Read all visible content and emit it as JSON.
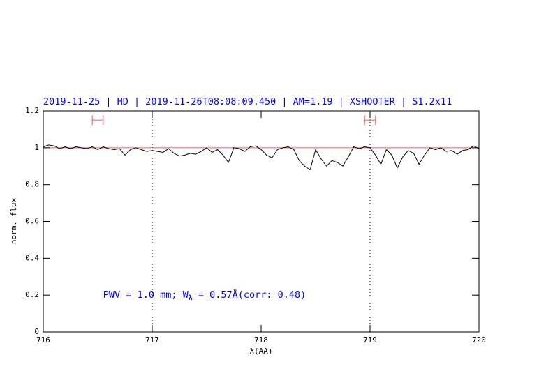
{
  "chart_data": {
    "type": "line",
    "title": "2019-11-25 | HD | 2019-11-26T08:08:09.450 | AM=1.19 | XSHOOTER | S1.2x11",
    "xlabel": "λ(AA)",
    "ylabel": "norm. flux",
    "annotation": {
      "parts": [
        "PWV = 1.0 mm; W",
        "λ",
        " = 0.57Å(corr: 0.48)"
      ],
      "color": "#0000ff"
    },
    "xlim": [
      716,
      720
    ],
    "ylim": [
      0,
      1.2
    ],
    "xticks": [
      716,
      717,
      718,
      719,
      720
    ],
    "yticks": [
      0,
      0.2,
      0.4,
      0.6,
      0.8,
      1,
      1.2
    ],
    "hline": {
      "y": 1,
      "color": "#ff5555"
    },
    "vlines": [
      717,
      719
    ],
    "markers": [
      {
        "x": 716.5,
        "y": 1.15,
        "xerr": 0.05,
        "color": "#ff5555"
      },
      {
        "x": 719,
        "y": 1.15,
        "xerr": 0.05,
        "color": "#ff5555"
      }
    ],
    "color": "#000000",
    "x": [
      716.0,
      716.05,
      716.1,
      716.15,
      716.2,
      716.25,
      716.3,
      716.35,
      716.4,
      716.45,
      716.5,
      716.55,
      716.6,
      716.65,
      716.7,
      716.75,
      716.8,
      716.85,
      716.9,
      716.95,
      717.0,
      717.05,
      717.1,
      717.15,
      717.2,
      717.25,
      717.3,
      717.35,
      717.4,
      717.45,
      717.5,
      717.55,
      717.6,
      717.65,
      717.7,
      717.75,
      717.8,
      717.85,
      717.9,
      717.95,
      718.0,
      718.05,
      718.1,
      718.15,
      718.2,
      718.25,
      718.3,
      718.35,
      718.4,
      718.45,
      718.5,
      718.55,
      718.6,
      718.65,
      718.7,
      718.75,
      718.8,
      718.85,
      718.9,
      718.95,
      719.0,
      719.05,
      719.1,
      719.15,
      719.2,
      719.25,
      719.3,
      719.35,
      719.4,
      719.45,
      719.5,
      719.55,
      719.6,
      719.65,
      719.7,
      719.75,
      719.8,
      719.85,
      719.9,
      719.95,
      720.0
    ],
    "values": [
      1.005,
      1.015,
      1.01,
      0.995,
      1.005,
      0.995,
      1.005,
      1.0,
      0.995,
      1.005,
      0.99,
      1.005,
      0.995,
      0.99,
      0.995,
      0.96,
      0.99,
      1.0,
      0.99,
      0.98,
      0.985,
      0.98,
      0.975,
      0.995,
      0.97,
      0.955,
      0.96,
      0.97,
      0.965,
      0.98,
      1.0,
      0.975,
      0.99,
      0.96,
      0.92,
      1.0,
      0.995,
      0.98,
      1.005,
      1.01,
      0.99,
      0.96,
      0.945,
      0.99,
      1.0,
      1.005,
      0.99,
      0.93,
      0.9,
      0.88,
      0.99,
      0.94,
      0.9,
      0.93,
      0.92,
      0.9,
      0.95,
      1.005,
      0.995,
      1.005,
      1.0,
      0.96,
      0.91,
      0.99,
      0.96,
      0.89,
      0.95,
      0.985,
      0.97,
      0.91,
      0.96,
      1.0,
      0.99,
      1.0,
      0.98,
      0.985,
      0.965,
      0.985,
      0.99,
      1.01,
      0.995
    ]
  }
}
